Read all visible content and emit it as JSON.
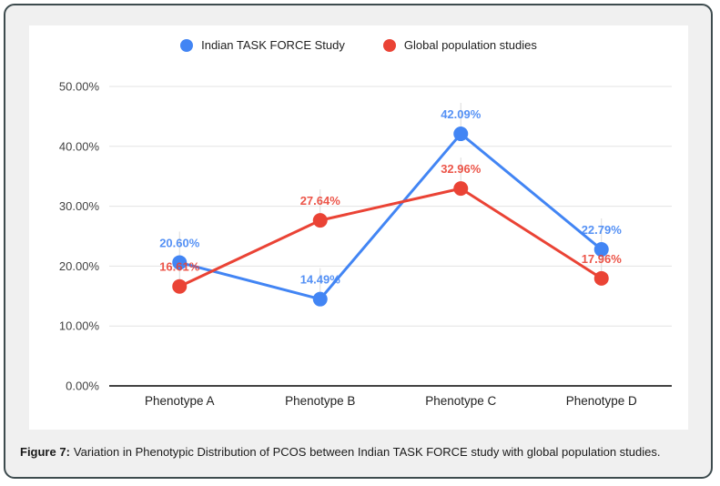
{
  "figure": {
    "caption_label": "Figure 7:",
    "caption_text": "Variation in Phenotypic Distribution of PCOS between Indian TASK FORCE study with global population studies."
  },
  "chart_data": {
    "type": "line",
    "categories": [
      "Phenotype A",
      "Phenotype B",
      "Phenotype C",
      "Phenotype D"
    ],
    "series": [
      {
        "name": "Indian TASK FORCE Study",
        "color": "#4285f4",
        "values": [
          20.6,
          14.49,
          42.09,
          22.79
        ],
        "point_labels": [
          "20.60%",
          "14.49%",
          "42.09%",
          "22.79%"
        ]
      },
      {
        "name": "Global population studies",
        "color": "#ea4335",
        "values": [
          16.61,
          27.64,
          32.96,
          17.96
        ],
        "point_labels": [
          "16.61%",
          "27.64%",
          "32.96%",
          "17.96%"
        ]
      }
    ],
    "y_axis": {
      "min": 0,
      "max": 50,
      "ticks": [
        0,
        10,
        20,
        30,
        40,
        50
      ],
      "tick_labels": [
        "0.00%",
        "10.00%",
        "20.00%",
        "30.00%",
        "40.00%",
        "50.00%"
      ]
    },
    "grid": true,
    "legend_position": "top",
    "styles": {
      "grid_color": "#e3e3e3",
      "axis_color": "#424242",
      "tick_label_color": "#424242",
      "category_label_color": "#212121",
      "annotation_stem_color": "#dadada"
    }
  }
}
